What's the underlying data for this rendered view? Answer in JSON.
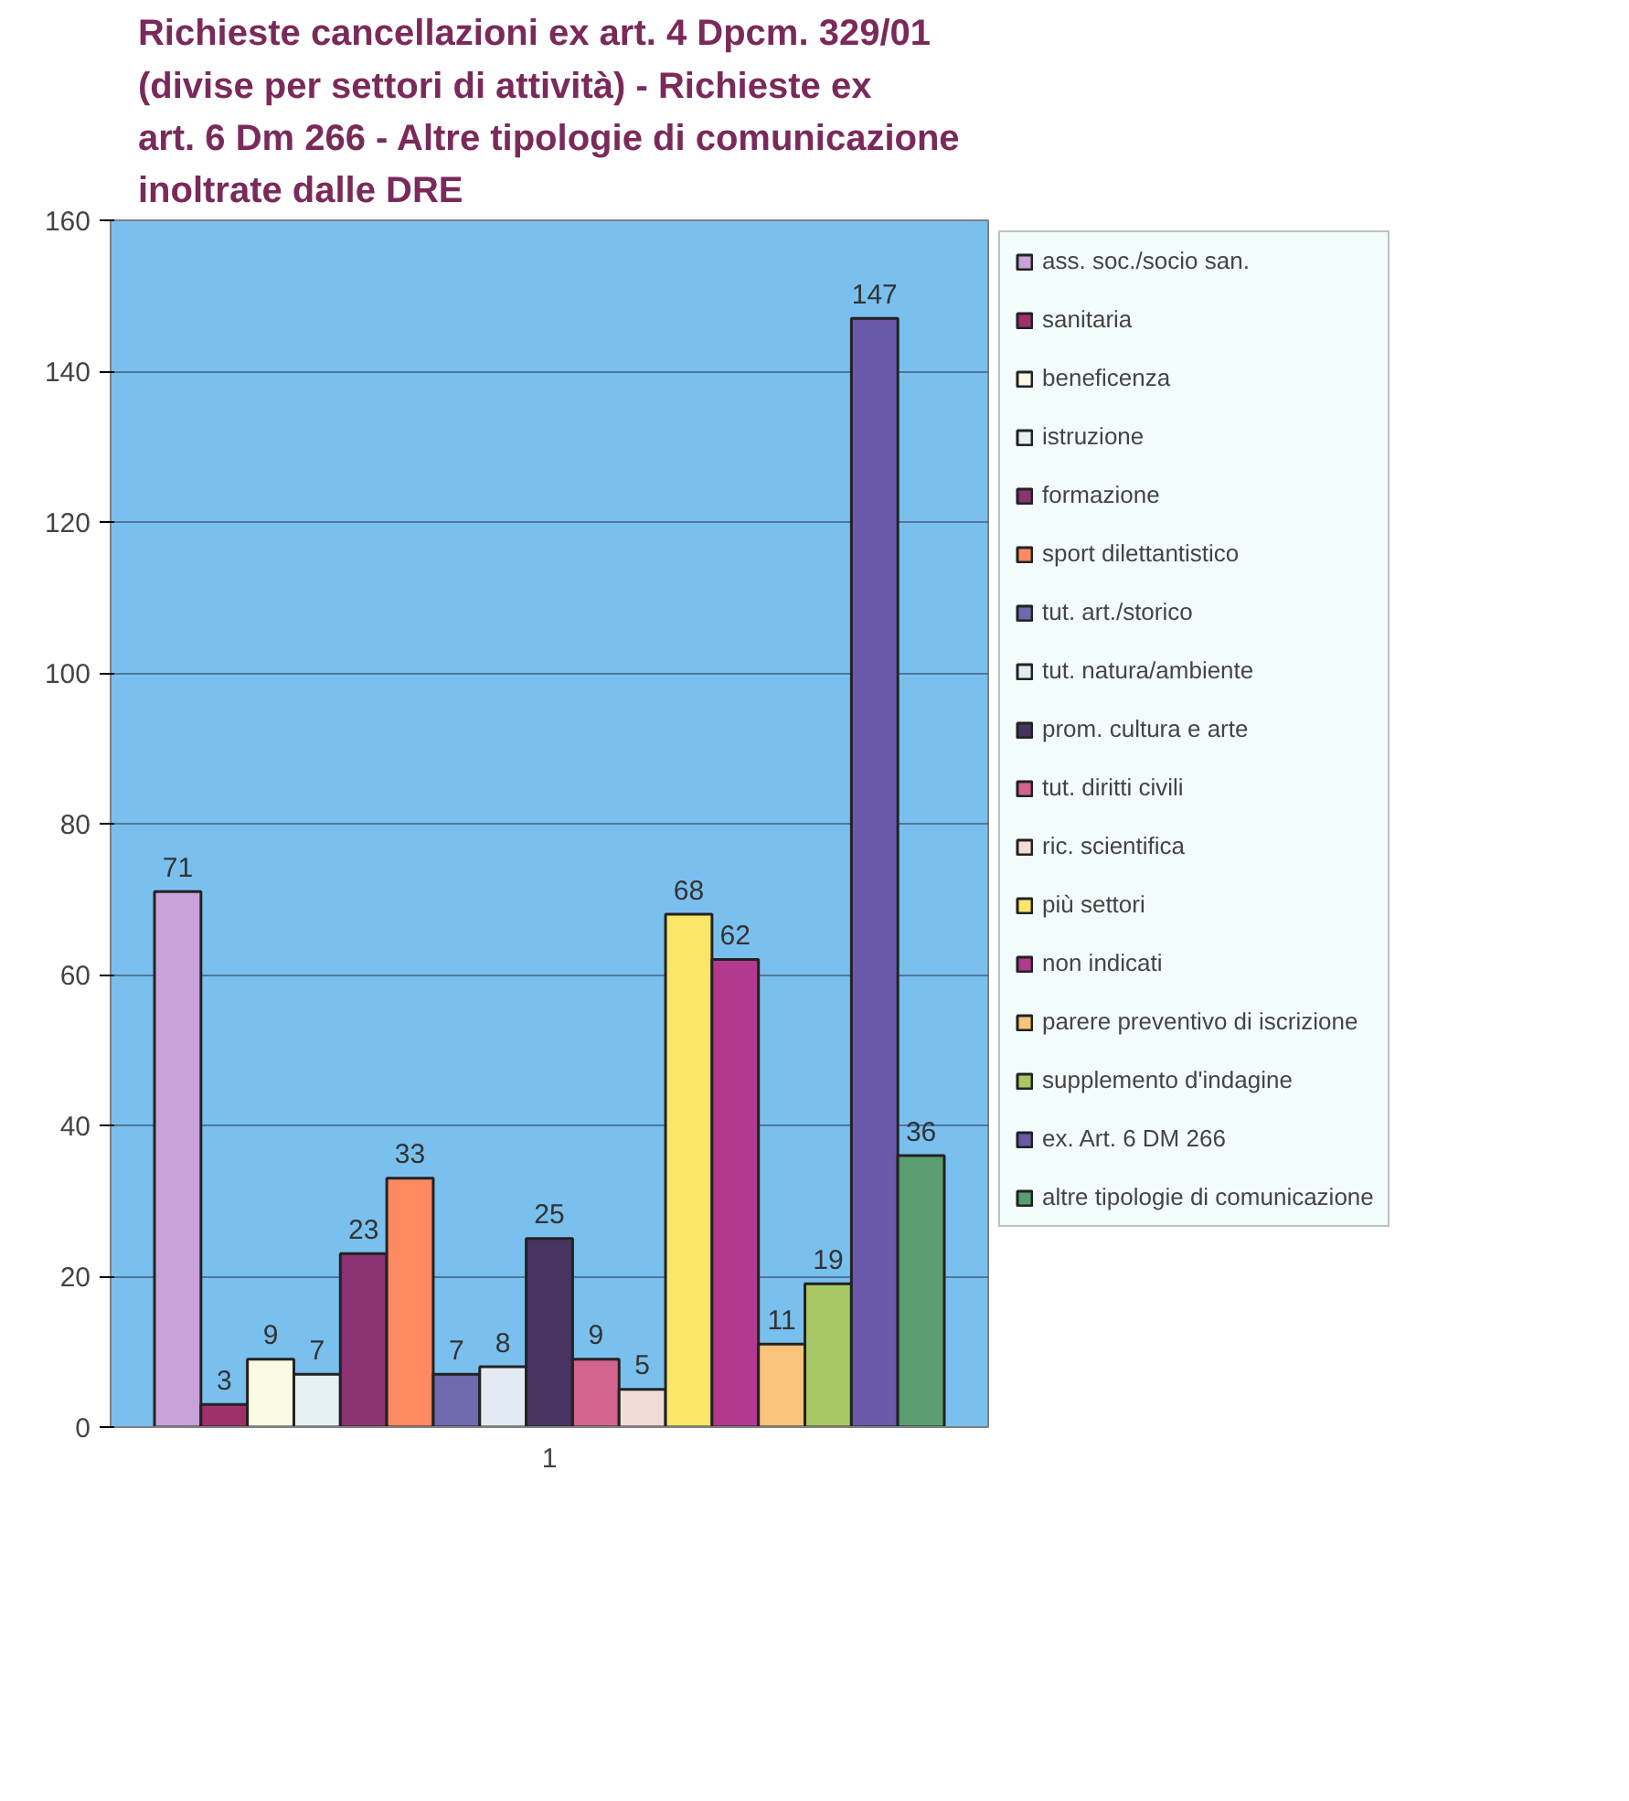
{
  "chart_data": {
    "type": "bar",
    "title": "Richieste cancellazioni ex art. 4 Dpcm. 329/01 (divise per settori di attività) - Richieste ex art. 6 Dm 266 - Altre tipologie di comunicazione inoltrate dalle DRE",
    "categories": [
      "1"
    ],
    "series": [
      {
        "name": "ass. soc./socio san.",
        "color": "#c8a2d8",
        "values": [
          71
        ]
      },
      {
        "name": "sanitaria",
        "color": "#a0306a",
        "values": [
          3
        ]
      },
      {
        "name": "beneficenza",
        "color": "#fbfbe4",
        "values": [
          9
        ]
      },
      {
        "name": "istruzione",
        "color": "#e4f2f4",
        "values": [
          7
        ]
      },
      {
        "name": "formazione",
        "color": "#8a3272",
        "values": [
          23
        ]
      },
      {
        "name": "sport dilettantistico",
        "color": "#ff8a62",
        "values": [
          33
        ]
      },
      {
        "name": "tut. art./storico",
        "color": "#6e6aae",
        "values": [
          7
        ]
      },
      {
        "name": "tut. natura/ambiente",
        "color": "#e2eaf2",
        "values": [
          8
        ]
      },
      {
        "name": "prom. cultura e arte",
        "color": "#483460",
        "values": [
          25
        ]
      },
      {
        "name": "tut. diritti civili",
        "color": "#d2648e",
        "values": [
          9
        ]
      },
      {
        "name": "ric. scientifica",
        "color": "#f2dcd6",
        "values": [
          5
        ]
      },
      {
        "name": "più settori",
        "color": "#fbe66a",
        "values": [
          68
        ]
      },
      {
        "name": "non indicati",
        "color": "#b23a8e",
        "values": [
          62
        ]
      },
      {
        "name": "parere preventivo di iscrizione",
        "color": "#f8c47a",
        "values": [
          11
        ]
      },
      {
        "name": "supplemento d'indagine",
        "color": "#a8c866",
        "values": [
          19
        ]
      },
      {
        "name": "ex. Art. 6 DM 266",
        "color": "#6a58a8",
        "values": [
          147
        ]
      },
      {
        "name": "altre tipologie di comunicazione",
        "color": "#5a9e70",
        "values": [
          36
        ]
      }
    ],
    "ylim": [
      0,
      160
    ],
    "yticks": [
      0,
      20,
      40,
      60,
      80,
      100,
      120,
      140,
      160
    ],
    "grid": "y",
    "legend": "right",
    "data_labels": true
  }
}
